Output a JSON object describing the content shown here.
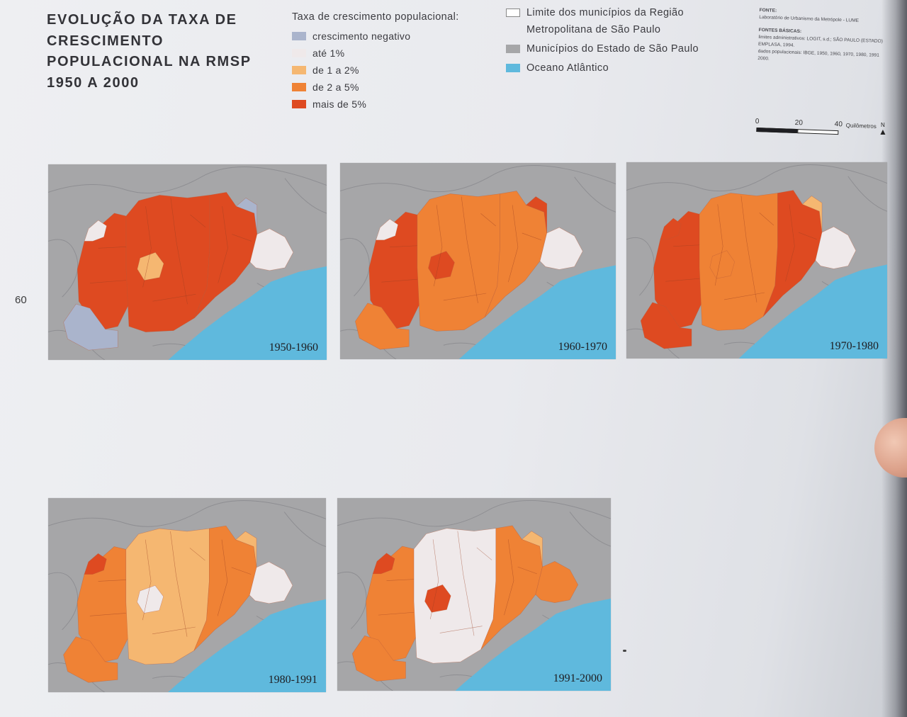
{
  "page": {
    "title_lines": [
      "EVOLUÇÃO DA TAXA DE",
      "CRESCIMENTO",
      "POPULACIONAL NA RMSP",
      "1950 A 2000"
    ],
    "page_number": "60"
  },
  "legend_growth": {
    "heading": "Taxa de crescimento populacional:",
    "items": [
      {
        "label": "crescimento negativo",
        "color": "#aab4cc"
      },
      {
        "label": "até 1%",
        "color": "#efe9ea"
      },
      {
        "label": "de 1 a 2%",
        "color": "#f5b771"
      },
      {
        "label": "de 2 a 5%",
        "color": "#ef8235"
      },
      {
        "label": "mais de 5%",
        "color": "#de4a21"
      }
    ]
  },
  "legend_base": {
    "items": [
      {
        "lines": [
          "Limite dos municípios da Região",
          "Metropolitana de São Paulo"
        ],
        "color": "#ffffff"
      },
      {
        "lines": [
          "Municípios do Estado de São Paulo"
        ],
        "color": "#a6a6a8"
      },
      {
        "lines": [
          "Oceano Atlântico"
        ],
        "color": "#5fb9dd"
      }
    ]
  },
  "sources": {
    "fonte_heading": "FONTE:",
    "fonte_text": "Laboratório de Urbanismo da Metrópole - LUME",
    "fontes_heading": "FONTES BÁSICAS:",
    "fontes_lines": [
      "limites administrativos: LOGIT, s.d.; SÃO PAULO (ESTADO)",
      "EMPLASA, 1994.",
      "dados populacionais: IBGE, 1950, 1960, 1970, 1980, 1991",
      "2000."
    ]
  },
  "scale": {
    "tick_0": "0",
    "tick_20": "20",
    "tick_40": "40",
    "unit": "Quilômetros",
    "north": "N"
  },
  "colors": {
    "land": "#a6a6a8",
    "ocean": "#5fb9dd",
    "border": "#8e8e92"
  },
  "maps": [
    {
      "label": "1950-1960",
      "west": "#de4a21",
      "center": "#de4a21",
      "east": "#de4a21",
      "far_east": "#efe9ea",
      "ne_patch": "#aab4cc",
      "sw_lobe": "#aab4cc",
      "nw_patch": "#efe9ea",
      "accent": "#f5b771"
    },
    {
      "label": "1960-1970",
      "west": "#de4a21",
      "center": "#ef8235",
      "east": "#ef8235",
      "far_east": "#efe9ea",
      "ne_patch": "#de4a21",
      "sw_lobe": "#ef8235",
      "nw_patch": "#efe9ea",
      "accent": "#de4a21"
    },
    {
      "label": "1970-1980",
      "west": "#de4a21",
      "center": "#ef8235",
      "east": "#de4a21",
      "far_east": "#efe9ea",
      "ne_patch": "#f5b771",
      "sw_lobe": "#de4a21",
      "nw_patch": "#de4a21",
      "accent": "#ef8235"
    },
    {
      "label": "1980-1991",
      "west": "#ef8235",
      "center": "#f5b771",
      "east": "#ef8235",
      "far_east": "#efe9ea",
      "ne_patch": "#f5b771",
      "sw_lobe": "#ef8235",
      "nw_patch": "#de4a21",
      "accent": "#efe9ea"
    },
    {
      "label": "1991-2000",
      "west": "#ef8235",
      "center": "#efe9ea",
      "east": "#ef8235",
      "far_east": "#ef8235",
      "ne_patch": "#f5b771",
      "sw_lobe": "#ef8235",
      "nw_patch": "#de4a21",
      "accent": "#de4a21"
    }
  ]
}
